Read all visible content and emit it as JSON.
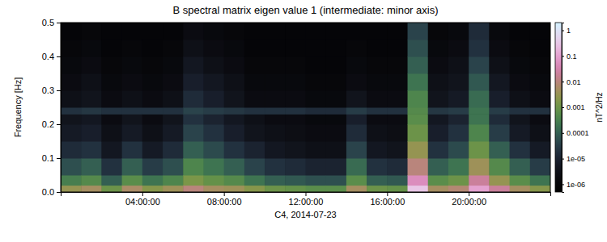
{
  "chart_data": {
    "type": "heatmap",
    "title": "B spectral matrix eigen value 1 (intermediate: minor axis)",
    "x_label": "C4, 2014-07-23",
    "y_label": "Frequency [Hz]",
    "colorbar_label": "nT^2/Hz",
    "log": "z",
    "xlim": [
      0,
      24
    ],
    "xticks": [
      {
        "value": 4,
        "label": "04:00:00"
      },
      {
        "value": 8,
        "label": "08:00:00"
      },
      {
        "value": 12,
        "label": "12:00:00"
      },
      {
        "value": 16,
        "label": "16:00:00"
      },
      {
        "value": 20,
        "label": "20:00:00"
      }
    ],
    "ylim": [
      0,
      0.5
    ],
    "yticks": [
      {
        "value": 0,
        "label": "0.0"
      },
      0.1,
      0.2,
      0.3,
      0.4,
      0.5
    ],
    "zlim": [
      5e-07,
      2
    ],
    "zticks": [
      1,
      0.1,
      0.01,
      0.001,
      0.0001,
      {
        "value": 1e-05,
        "label": "1e-05"
      },
      {
        "value": 1e-06,
        "label": "1e-06"
      }
    ],
    "x_bins": [
      0,
      1,
      2,
      3,
      4,
      5,
      6,
      7,
      8,
      9,
      10,
      11,
      12,
      13,
      14,
      15,
      16,
      17,
      18,
      19,
      20,
      21,
      22,
      23,
      24
    ],
    "y_bins": [
      0,
      0.02,
      0.05,
      0.1,
      0.15,
      0.2,
      0.23,
      0.25,
      0.3,
      0.35,
      0.4,
      0.45,
      0.5
    ],
    "z": [
      [
        0.003,
        0.0003,
        6e-05,
        1.5e-05,
        6e-06,
        4e-06,
        2e-05,
        3e-06,
        2e-06,
        1.5e-06,
        1.2e-06,
        1e-06
      ],
      [
        0.005,
        0.0005,
        0.0001,
        2e-05,
        8e-06,
        5e-06,
        2.5e-05,
        4e-06,
        3e-06,
        2e-06,
        1.5e-06,
        1.2e-06
      ],
      [
        0.001,
        0.0001,
        2e-05,
        5e-06,
        3e-06,
        2e-06,
        2e-05,
        2e-06,
        1.5e-06,
        1.2e-06,
        1e-06,
        1e-06
      ],
      [
        0.006,
        0.0006,
        0.0001,
        2e-05,
        6e-06,
        4e-06,
        2e-05,
        3e-06,
        2e-06,
        1.5e-06,
        1.2e-06,
        1e-06
      ],
      [
        0.002,
        0.0002,
        3e-05,
        6e-06,
        3e-06,
        2e-06,
        2e-05,
        2e-06,
        1.5e-06,
        1.2e-06,
        1e-06,
        1e-06
      ],
      [
        0.004,
        0.0004,
        6e-05,
        1.5e-05,
        6e-06,
        4e-06,
        2e-05,
        3e-06,
        2e-06,
        1.5e-06,
        1.2e-06,
        1e-06
      ],
      [
        0.01,
        0.0015,
        0.0004,
        0.0001,
        4e-05,
        2e-05,
        4e-05,
        1.5e-05,
        8e-06,
        5e-06,
        3e-06,
        2e-06
      ],
      [
        0.005,
        0.0008,
        0.0002,
        5e-05,
        2e-05,
        1e-05,
        3e-05,
        8e-06,
        5e-06,
        3e-06,
        2e-06,
        1.5e-06
      ],
      [
        0.004,
        0.0005,
        0.0001,
        2e-05,
        8e-06,
        5e-06,
        2.5e-05,
        4e-06,
        3e-06,
        2e-06,
        1.5e-06,
        1.2e-06
      ],
      [
        0.002,
        0.0002,
        4e-05,
        1e-05,
        4e-06,
        3e-06,
        2e-05,
        2e-06,
        1.5e-06,
        1.2e-06,
        1e-06,
        1e-06
      ],
      [
        0.001,
        0.0001,
        2e-05,
        5e-06,
        3e-06,
        2e-06,
        2e-05,
        2e-06,
        1.5e-06,
        1.2e-06,
        1e-06,
        1e-06
      ],
      [
        0.0008,
        8e-05,
        1.5e-05,
        4e-06,
        2.5e-06,
        2e-06,
        2e-05,
        2e-06,
        1.5e-06,
        1.2e-06,
        1e-06,
        1e-06
      ],
      [
        0.0006,
        6e-05,
        1e-05,
        3e-06,
        2e-06,
        1.5e-06,
        1.5e-05,
        1.5e-06,
        1.2e-06,
        1e-06,
        1e-06,
        1e-06
      ],
      [
        0.0006,
        6e-05,
        1e-05,
        3e-06,
        2e-06,
        1.5e-06,
        1.5e-05,
        1.5e-06,
        1.2e-06,
        1e-06,
        1e-06,
        1e-06
      ],
      [
        0.005,
        0.0006,
        0.00015,
        4e-05,
        1.5e-05,
        8e-06,
        3e-05,
        4e-06,
        2e-06,
        1.5e-06,
        1.2e-06,
        1e-06
      ],
      [
        0.001,
        0.0001,
        2e-05,
        5e-06,
        3e-06,
        2e-06,
        2e-05,
        2e-06,
        1.5e-06,
        1.2e-06,
        1e-06,
        1e-06
      ],
      [
        0.0008,
        8e-05,
        1.5e-05,
        4e-06,
        2.5e-06,
        2e-06,
        2e-05,
        2e-06,
        1.5e-06,
        1.2e-06,
        1e-06,
        1e-06
      ],
      [
        0.3,
        0.05,
        0.01,
        0.003,
        0.001,
        0.0006,
        0.0005,
        0.0004,
        0.0002,
        0.0001,
        6e-05,
        4e-05
      ],
      [
        0.005,
        0.0006,
        0.0001,
        2e-05,
        8e-06,
        5e-06,
        2.5e-05,
        4e-06,
        3e-06,
        2e-06,
        1.5e-06,
        1.2e-06
      ],
      [
        0.008,
        0.001,
        0.0002,
        5e-05,
        2e-05,
        1e-05,
        3e-05,
        6e-06,
        4e-06,
        3e-06,
        2e-06,
        1.5e-06
      ],
      [
        0.1,
        0.02,
        0.004,
        0.001,
        0.0004,
        0.0002,
        0.0002,
        0.00015,
        8e-05,
        4e-05,
        2e-05,
        1.5e-05
      ],
      [
        0.02,
        0.003,
        0.0005,
        0.0001,
        3e-05,
        1.5e-05,
        3e-05,
        8e-06,
        5e-06,
        3e-06,
        2e-06,
        1.5e-06
      ],
      [
        0.005,
        0.0006,
        0.0001,
        2e-05,
        6e-06,
        4e-06,
        2e-05,
        3e-06,
        2e-06,
        1.5e-06,
        1.2e-06,
        1e-06
      ],
      [
        0.002,
        0.0002,
        3e-05,
        6e-06,
        3e-06,
        2e-06,
        2e-05,
        2e-06,
        1.5e-06,
        1.2e-06,
        1e-06,
        1e-06
      ]
    ]
  }
}
